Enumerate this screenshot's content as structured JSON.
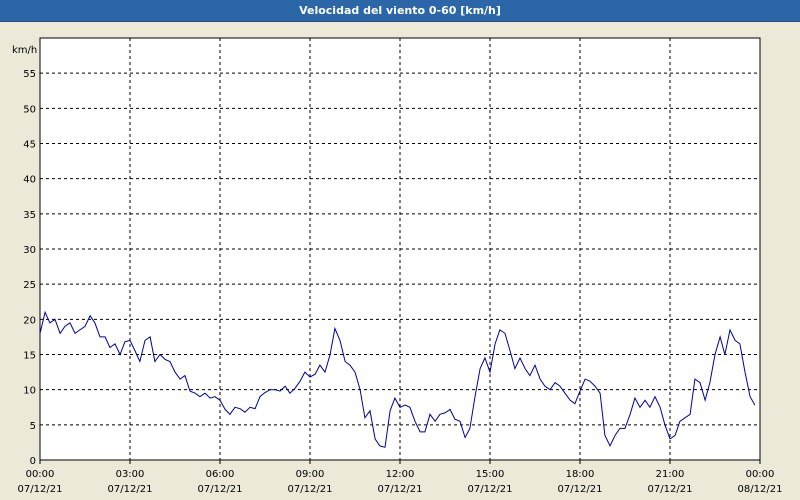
{
  "window": {
    "title": "Velocidad del viento 0-60 [km/h]"
  },
  "chart_data": {
    "type": "line",
    "title": "Velocidad del viento 0-60 [km/h]",
    "ylabel": "km/h",
    "ylim": [
      0,
      60
    ],
    "y_ticks": [
      0,
      5,
      10,
      15,
      20,
      25,
      30,
      35,
      40,
      45,
      50,
      55
    ],
    "xlim_hours": [
      0,
      24
    ],
    "x_ticks": [
      {
        "time": "00:00",
        "date": "07/12/21"
      },
      {
        "time": "03:00",
        "date": "07/12/21"
      },
      {
        "time": "06:00",
        "date": "07/12/21"
      },
      {
        "time": "09:00",
        "date": "07/12/21"
      },
      {
        "time": "12:00",
        "date": "07/12/21"
      },
      {
        "time": "15:00",
        "date": "07/12/21"
      },
      {
        "time": "18:00",
        "date": "07/12/21"
      },
      {
        "time": "21:00",
        "date": "07/12/21"
      },
      {
        "time": "00:00",
        "date": "08/12/21"
      }
    ],
    "grid": true,
    "colors": {
      "line": "#0000a0",
      "plot_bg": "#ffffff",
      "title_bar": "#2b66a8"
    },
    "series": [
      {
        "x": [
          0.0,
          0.17,
          0.33,
          0.5,
          0.67,
          0.83,
          1.0,
          1.17,
          1.33,
          1.5,
          1.67,
          1.83,
          2.0,
          2.17,
          2.33,
          2.5,
          2.67,
          2.83,
          3.0,
          3.17,
          3.33,
          3.5,
          3.67,
          3.83,
          4.0,
          4.17,
          4.33,
          4.5,
          4.67,
          4.83,
          5.0,
          5.17,
          5.33,
          5.5,
          5.67,
          5.83,
          6.0,
          6.17,
          6.33,
          6.5,
          6.67,
          6.83,
          7.0,
          7.17,
          7.33,
          7.5,
          7.67,
          7.83,
          8.0,
          8.17,
          8.33,
          8.5,
          8.67,
          8.83,
          9.0,
          9.17,
          9.33,
          9.5,
          9.67,
          9.83,
          10.0,
          10.17,
          10.33,
          10.5,
          10.67,
          10.83,
          11.0,
          11.17,
          11.33,
          11.5,
          11.67,
          11.83,
          12.0,
          12.17,
          12.33,
          12.5,
          12.67,
          12.83,
          13.0,
          13.17,
          13.33,
          13.5,
          13.67,
          13.83,
          14.0,
          14.17,
          14.33,
          14.5,
          14.67,
          14.83,
          15.0,
          15.17,
          15.33,
          15.5,
          15.67,
          15.83,
          16.0,
          16.17,
          16.33,
          16.5,
          16.67,
          16.83,
          17.0,
          17.17,
          17.33,
          17.5,
          17.67,
          17.83,
          18.0,
          18.17,
          18.33,
          18.5,
          18.67,
          18.83,
          19.0,
          19.17,
          19.33,
          19.5,
          19.67,
          19.83,
          20.0,
          20.17,
          20.33,
          20.5,
          20.67,
          20.83,
          21.0,
          21.17,
          21.33,
          21.5,
          21.67,
          21.83,
          22.0,
          22.17,
          22.33,
          22.5,
          22.67,
          22.83,
          23.0,
          23.17,
          23.33,
          23.5,
          23.67,
          23.83
        ],
        "y": [
          18,
          21,
          19.5,
          20,
          18,
          19,
          19.5,
          18,
          18.5,
          19,
          20.5,
          19.5,
          17.5,
          17.5,
          16,
          16.5,
          15,
          16.8,
          17,
          15.5,
          14,
          17,
          17.5,
          14,
          15,
          14.3,
          14,
          12.5,
          11.5,
          12,
          9.8,
          9.5,
          9,
          9.5,
          8.8,
          9,
          8.5,
          7.2,
          6.5,
          7.5,
          7.3,
          6.8,
          7.5,
          7.3,
          9,
          9.6,
          10,
          10,
          9.8,
          10.5,
          9.5,
          10.2,
          11.2,
          12.5,
          11.8,
          12.2,
          13.5,
          12.5,
          15,
          18.7,
          17,
          14,
          13.5,
          12.5,
          10,
          6,
          7,
          3,
          2,
          1.8,
          7,
          8.8,
          7.5,
          7.8,
          7.5,
          5.5,
          4,
          4,
          6.5,
          5.5,
          6.5,
          6.7,
          7.2,
          5.8,
          5.5,
          3.2,
          4.5,
          9,
          13,
          14.5,
          12.5,
          16.5,
          18.5,
          18,
          15.5,
          13,
          14.5,
          13,
          12,
          13.5,
          11.5,
          10.5,
          10,
          11,
          10.5,
          9.5,
          8.5,
          8,
          9.8,
          11.5,
          11.2,
          10.5,
          9.5,
          3.5,
          2,
          3.5,
          4.5,
          4.5,
          6.5,
          8.8,
          7.5,
          8.5,
          7.5,
          9,
          7.5,
          5,
          3,
          3.5,
          5.5,
          6,
          6.5,
          11.5,
          11,
          8.5,
          11,
          15,
          17.5,
          15,
          18.5,
          17,
          16.5,
          12.5,
          9,
          7.8
        ]
      }
    ]
  }
}
